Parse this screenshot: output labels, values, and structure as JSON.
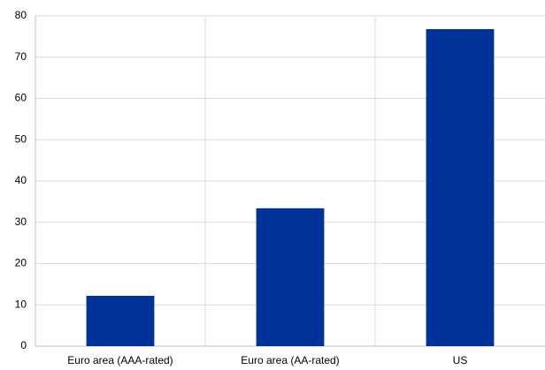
{
  "chart_data": {
    "type": "bar",
    "categories": [
      "Euro area (AAA-rated)",
      "Euro area (AA-rated)",
      "US"
    ],
    "values": [
      12.2,
      33.4,
      76.8
    ],
    "color": "#003399",
    "ylim": [
      0,
      80
    ],
    "yticks": [
      0,
      10,
      20,
      30,
      40,
      50,
      60,
      70,
      80
    ],
    "grid": true
  }
}
